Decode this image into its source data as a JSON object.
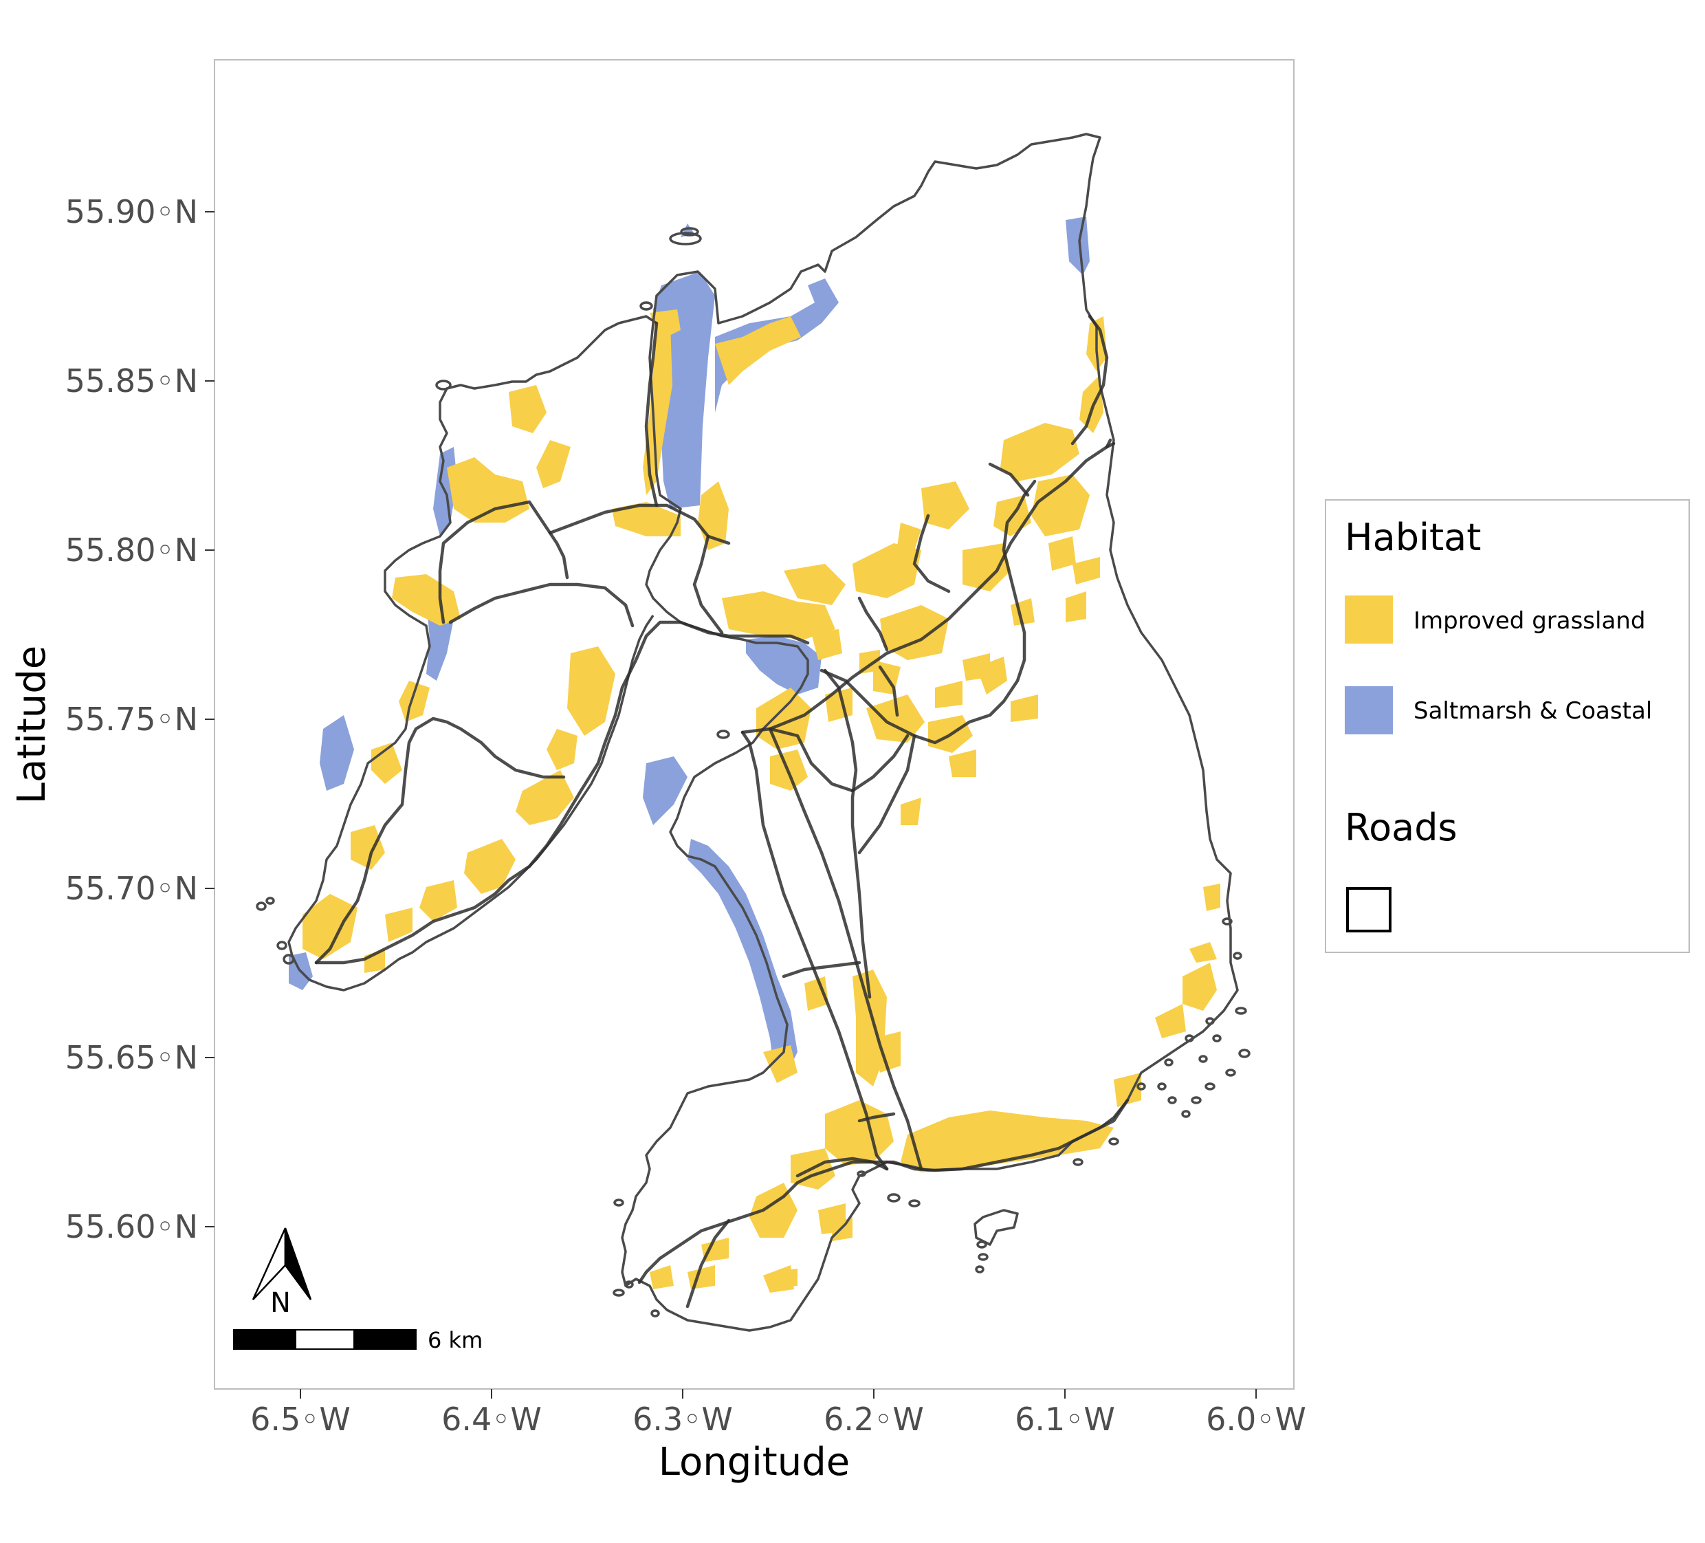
{
  "chart_data": {
    "type": "map",
    "xlabel": "Longitude",
    "ylabel": "Latitude",
    "x_ticks": [
      "6.5◦W",
      "6.4◦W",
      "6.3◦W",
      "6.2◦W",
      "6.1◦W",
      "6.0◦W"
    ],
    "y_ticks": [
      "55.90◦N",
      "55.85◦N",
      "55.80◦N",
      "55.75◦N",
      "55.70◦N",
      "55.65◦N",
      "55.60◦N"
    ],
    "xlim": [
      -6.54,
      -5.98
    ],
    "ylim": [
      55.555,
      55.945
    ],
    "grid": false,
    "legend": {
      "placement": "right",
      "habitat_title": "Habitat",
      "items": [
        {
          "label": "Improved grassland",
          "color": "#f8cf48"
        },
        {
          "label": "Saltmarsh & Coastal",
          "color": "#8aa1db"
        }
      ],
      "roads_title": "Roads"
    },
    "north_arrow_label": "N",
    "scale_bar_label": "6 km",
    "colors": {
      "grassland": "#f8cf48",
      "saltmarsh": "#8aa1db",
      "outline": "#4a4a4a",
      "roads": "#2e2e2e",
      "panel_border": "#bdbdbd"
    }
  }
}
